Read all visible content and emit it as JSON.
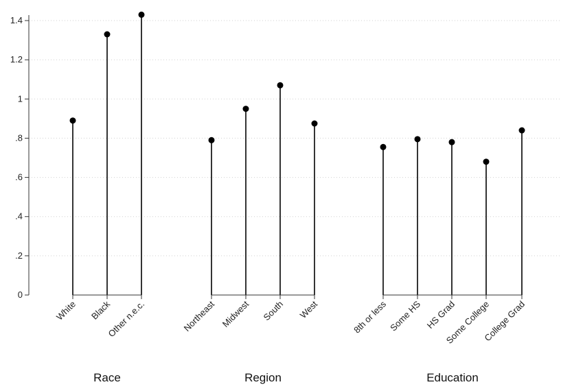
{
  "chart_data": {
    "type": "lollipop",
    "title": "",
    "xlabel": "",
    "ylabel": "",
    "ylim": [
      0,
      1.4
    ],
    "yticks": [
      0,
      0.2,
      0.4,
      0.6,
      0.8,
      1,
      1.2,
      1.4
    ],
    "ytick_labels": [
      "0",
      ".2",
      ".4",
      ".6",
      ".8",
      "1",
      "1.2",
      "1.4"
    ],
    "grid": "horizontal dotted",
    "groups": [
      {
        "name": "Race",
        "categories": [
          "White",
          "Black",
          "Other n.e.c."
        ],
        "values": [
          0.89,
          1.33,
          1.43
        ]
      },
      {
        "name": "Region",
        "categories": [
          "Northeast",
          "Midwest",
          "South",
          "West"
        ],
        "values": [
          0.79,
          0.95,
          1.07,
          0.875
        ]
      },
      {
        "name": "Education",
        "categories": [
          "8th or less",
          "Some HS",
          "HS Grad",
          "Some College",
          "College Grad"
        ],
        "values": [
          0.755,
          0.795,
          0.78,
          0.68,
          0.84
        ]
      }
    ],
    "colors": {
      "stem": "#333333",
      "marker": "#000000",
      "grid": "#cfcfcf"
    }
  }
}
